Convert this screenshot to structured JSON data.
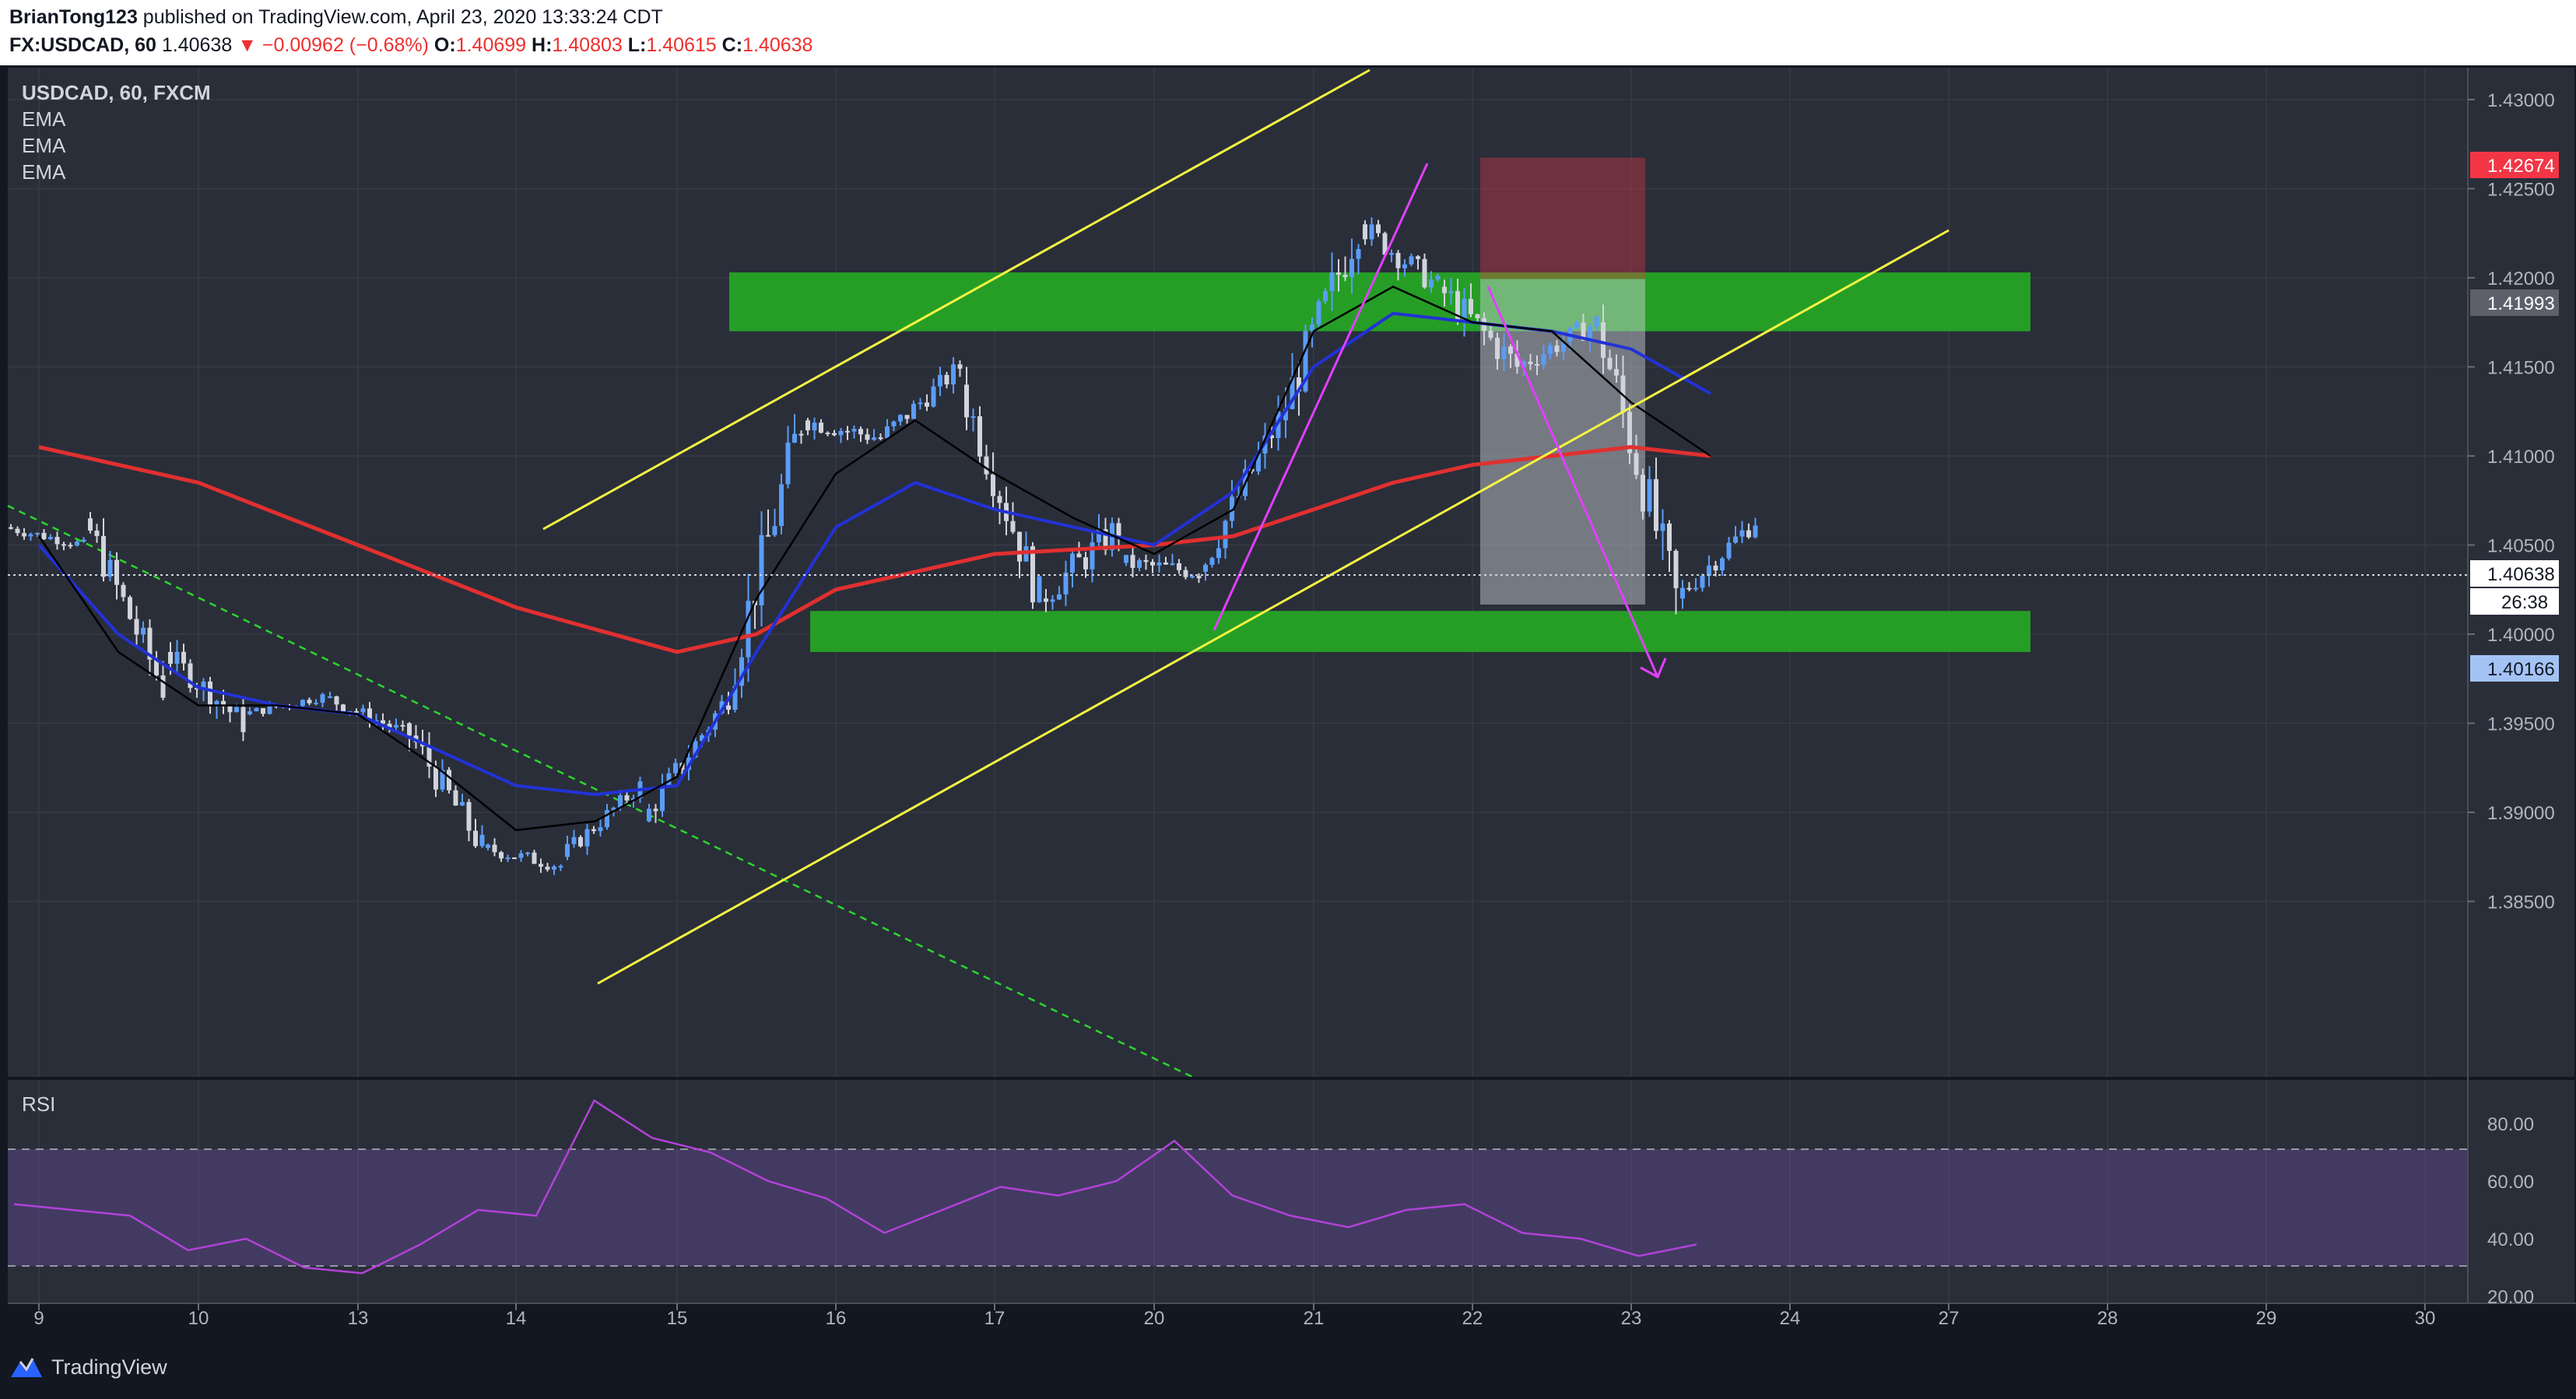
{
  "header": {
    "author": "BrianTong123",
    "published_text": "published on TradingView.com, April 23, 2020 13:33:24 CDT",
    "symbol": "FX:USDCAD, 60",
    "last": "1.40638",
    "change": "▼ −0.00962 (−0.68%)",
    "o_label": "O:",
    "o_value": "1.40699",
    "h_label": "H:",
    "h_value": "1.40803",
    "l_label": "L:",
    "l_value": "1.40615",
    "c_label": "C:",
    "c_value": "1.40638"
  },
  "legend": {
    "title": "USDCAD, 60, FXCM",
    "indicators": [
      "EMA",
      "EMA",
      "EMA"
    ],
    "rsi_label": "RSI"
  },
  "badges": {
    "stop": "1.42674",
    "entry": "1.41993",
    "current": "1.40638",
    "countdown": "26:38",
    "target": "1.40166"
  },
  "footer": {
    "brand": "TradingView"
  },
  "colors": {
    "background": "#2a2e39",
    "grid": "#363a45",
    "axis_text": "#b2b5be",
    "bull": "#5b9cf6",
    "bear": "#d1d4dc",
    "ema_fast": "#000000",
    "ema_mid": "#2232d6",
    "ema_slow": "#e03030",
    "channel": "#f5f542",
    "zone": "#26a825",
    "arrows": "#e040fb",
    "trend_dashed": "#2bd62b",
    "rsi_line": "#b242d8",
    "rsi_band": "#7e57c2",
    "stop_badge": "#f23645",
    "entry_badge": "#5d606b",
    "target_badge": "#a3c3f5"
  },
  "chart_data": [
    {
      "type": "candlestick",
      "title": "USDCAD, 60, FXCM",
      "x_tick_labels": [
        "9",
        "10",
        "13",
        "14",
        "15",
        "16",
        "17",
        "20",
        "21",
        "22",
        "23",
        "24",
        "27",
        "28",
        "29",
        "30"
      ],
      "y_tick_labels": [
        "1.43000",
        "1.42500",
        "1.42000",
        "1.41500",
        "1.41000",
        "1.40500",
        "1.40000",
        "1.39500",
        "1.39000",
        "1.38500"
      ],
      "ylim": [
        1.3815,
        1.4345
      ],
      "grid": true,
      "ohlc_estimated": [
        {
          "x": "9 00:00",
          "o": 1.406,
          "h": 1.4075,
          "l": 1.404,
          "c": 1.405
        },
        {
          "x": "9 12:00",
          "o": 1.4065,
          "h": 1.407,
          "l": 1.395,
          "c": 1.397
        },
        {
          "x": "10 00:00",
          "o": 1.399,
          "h": 1.402,
          "l": 1.394,
          "c": 1.395
        },
        {
          "x": "10 12:00",
          "o": 1.3955,
          "h": 1.3975,
          "l": 1.3945,
          "c": 1.3965
        },
        {
          "x": "13 00:00",
          "o": 1.3965,
          "h": 1.3975,
          "l": 1.393,
          "c": 1.3945
        },
        {
          "x": "13 12:00",
          "o": 1.395,
          "h": 1.398,
          "l": 1.388,
          "c": 1.388
        },
        {
          "x": "14 00:00",
          "o": 1.388,
          "h": 1.3905,
          "l": 1.386,
          "c": 1.387
        },
        {
          "x": "14 12:00",
          "o": 1.3875,
          "h": 1.3925,
          "l": 1.387,
          "c": 1.3915
        },
        {
          "x": "15 00:00",
          "o": 1.3895,
          "h": 1.397,
          "l": 1.389,
          "c": 1.396
        },
        {
          "x": "15 12:00",
          "o": 1.396,
          "h": 1.413,
          "l": 1.3955,
          "c": 1.412
        },
        {
          "x": "16 00:00",
          "o": 1.412,
          "h": 1.414,
          "l": 1.408,
          "c": 1.411
        },
        {
          "x": "16 12:00",
          "o": 1.411,
          "h": 1.4165,
          "l": 1.41,
          "c": 1.415
        },
        {
          "x": "17 00:00",
          "o": 1.414,
          "h": 1.415,
          "l": 1.401,
          "c": 1.402
        },
        {
          "x": "17 12:00",
          "o": 1.402,
          "h": 1.411,
          "l": 1.4005,
          "c": 1.406
        },
        {
          "x": "20 00:00",
          "o": 1.404,
          "h": 1.406,
          "l": 1.4,
          "c": 1.4035
        },
        {
          "x": "20 12:00",
          "o": 1.4035,
          "h": 1.414,
          "l": 1.403,
          "c": 1.412
        },
        {
          "x": "21 00:00",
          "o": 1.412,
          "h": 1.4265,
          "l": 1.411,
          "c": 1.423
        },
        {
          "x": "21 12:00",
          "o": 1.423,
          "h": 1.425,
          "l": 1.417,
          "c": 1.4195
        },
        {
          "x": "22 00:00",
          "o": 1.4195,
          "h": 1.4235,
          "l": 1.413,
          "c": 1.415
        },
        {
          "x": "22 12:00",
          "o": 1.415,
          "h": 1.42,
          "l": 1.413,
          "c": 1.4175
        },
        {
          "x": "23 00:00",
          "o": 1.4175,
          "h": 1.4185,
          "l": 1.4,
          "c": 1.402
        },
        {
          "x": "23 12:00",
          "o": 1.402,
          "h": 1.408,
          "l": 1.401,
          "c": 1.4064
        }
      ],
      "ema_approx": {
        "fast_black": [
          [
            0,
            1.4055
          ],
          [
            1,
            1.399
          ],
          [
            2,
            1.396
          ],
          [
            3,
            1.396
          ],
          [
            4,
            1.3955
          ],
          [
            5,
            1.3925
          ],
          [
            6,
            1.389
          ],
          [
            7,
            1.3895
          ],
          [
            8,
            1.392
          ],
          [
            9,
            1.402
          ],
          [
            10,
            1.409
          ],
          [
            11,
            1.412
          ],
          [
            12,
            1.409
          ],
          [
            13,
            1.4065
          ],
          [
            14,
            1.4045
          ],
          [
            15,
            1.407
          ],
          [
            16,
            1.417
          ],
          [
            17,
            1.4195
          ],
          [
            18,
            1.4175
          ],
          [
            19,
            1.417
          ],
          [
            20,
            1.413
          ],
          [
            21,
            1.41
          ]
        ],
        "mid_blue": [
          [
            0,
            1.405
          ],
          [
            1,
            1.4
          ],
          [
            2,
            1.397
          ],
          [
            3,
            1.396
          ],
          [
            4,
            1.3955
          ],
          [
            5,
            1.3935
          ],
          [
            6,
            1.3915
          ],
          [
            7,
            1.391
          ],
          [
            8,
            1.3915
          ],
          [
            9,
            1.399
          ],
          [
            10,
            1.406
          ],
          [
            11,
            1.4085
          ],
          [
            12,
            1.407
          ],
          [
            13,
            1.406
          ],
          [
            14,
            1.405
          ],
          [
            15,
            1.408
          ],
          [
            16,
            1.415
          ],
          [
            17,
            1.418
          ],
          [
            18,
            1.4175
          ],
          [
            19,
            1.417
          ],
          [
            20,
            1.416
          ],
          [
            21,
            1.4135
          ]
        ],
        "slow_red": [
          [
            0,
            1.4105
          ],
          [
            2,
            1.4085
          ],
          [
            4,
            1.405
          ],
          [
            6,
            1.4015
          ],
          [
            8,
            1.399
          ],
          [
            9,
            1.4
          ],
          [
            10,
            1.4025
          ],
          [
            12,
            1.4045
          ],
          [
            14,
            1.405
          ],
          [
            15,
            1.4055
          ],
          [
            16,
            1.407
          ],
          [
            17,
            1.4085
          ],
          [
            18,
            1.4095
          ],
          [
            19,
            1.41
          ],
          [
            20,
            1.4105
          ],
          [
            21,
            1.41
          ]
        ]
      },
      "annotations": {
        "supply_zone": [
          1.417,
          1.4203
        ],
        "demand_zone": [
          1.399,
          1.4013
        ],
        "short_position": {
          "entry": 1.41993,
          "stop": 1.42674,
          "target": 1.40166
        },
        "current_price_line": 1.40638
      }
    },
    {
      "type": "line",
      "title": "RSI",
      "y_tick_labels": [
        "80.00",
        "60.00",
        "40.00",
        "20.00"
      ],
      "ylim": [
        19,
        89
      ],
      "band": [
        30,
        70
      ],
      "values_approx": [
        52,
        50,
        48,
        36,
        40,
        30,
        28,
        38,
        50,
        48,
        88,
        75,
        70,
        60,
        54,
        42,
        50,
        58,
        55,
        60,
        74,
        55,
        48,
        44,
        50,
        52,
        42,
        40,
        34,
        38
      ]
    }
  ]
}
